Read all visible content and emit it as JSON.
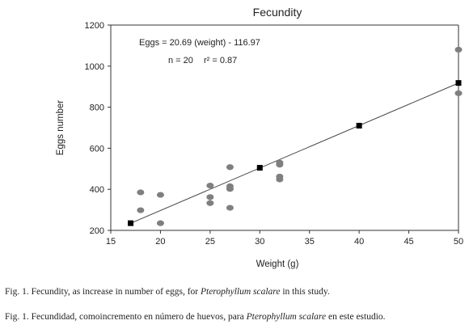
{
  "chart_data": {
    "type": "scatter",
    "title": "Fecundity",
    "xlabel": "Weight (g)",
    "ylabel": "Eggs number",
    "xlim": [
      15,
      50
    ],
    "ylim": [
      200,
      1200
    ],
    "x_ticks": [
      15,
      20,
      25,
      30,
      35,
      40,
      45,
      50
    ],
    "y_ticks": [
      200,
      400,
      600,
      800,
      1000,
      1200
    ],
    "annotation_equation": "Eggs = 20.69 (weight) - 116.97",
    "annotation_n": "n = 20",
    "annotation_r2": "r² = 0.87",
    "series": [
      {
        "marker": "ellipse",
        "color": "#7f7f7f",
        "points": [
          [
            18,
            385
          ],
          [
            18,
            298
          ],
          [
            20,
            373
          ],
          [
            20,
            235
          ],
          [
            25,
            418
          ],
          [
            25,
            362
          ],
          [
            25,
            333
          ],
          [
            27,
            508
          ],
          [
            27,
            415
          ],
          [
            27,
            402
          ],
          [
            27,
            310
          ],
          [
            32,
            530
          ],
          [
            32,
            520
          ],
          [
            32,
            462
          ],
          [
            32,
            448
          ],
          [
            50,
            1080
          ],
          [
            50,
            868
          ]
        ]
      },
      {
        "marker": "square",
        "color": "#000000",
        "points": [
          [
            17,
            235
          ],
          [
            30,
            505
          ],
          [
            40,
            710
          ],
          [
            50,
            918
          ]
        ]
      }
    ],
    "regression_line": {
      "x_range": [
        17,
        50
      ],
      "slope": 20.69,
      "intercept": -116.97
    },
    "grid": false,
    "legend": "none"
  },
  "caption": {
    "en_prefix": "Fig. 1. Fecundity, as increase in number of eggs, for ",
    "en_species": "Pterophyllum scalare",
    "en_suffix": " in this study.",
    "es_prefix": "Fig. 1. Fecundidad, comoincremento en número de huevos, para ",
    "es_species": "Pterophyllum scalare",
    "es_suffix": " en este estudio."
  }
}
